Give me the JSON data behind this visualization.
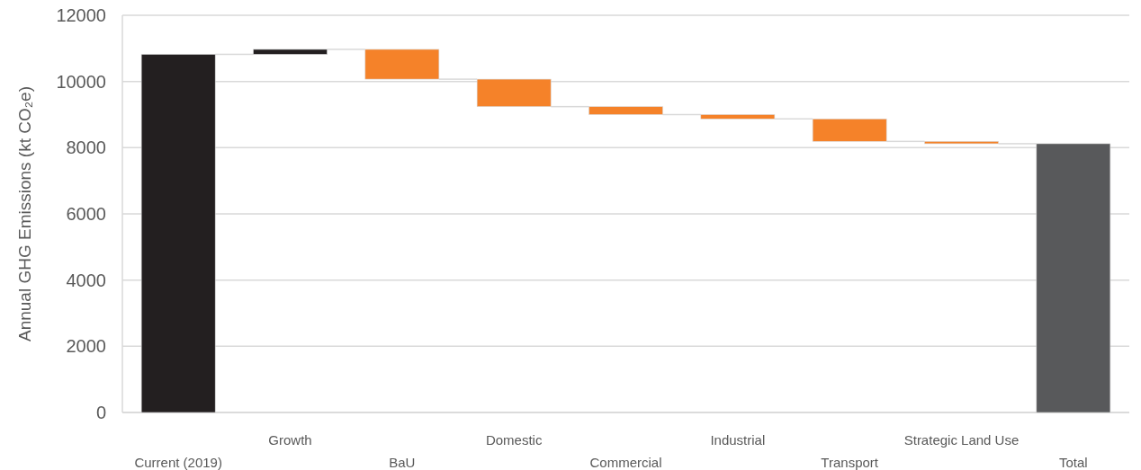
{
  "chart_data": {
    "type": "bar",
    "ylabel": "Annual GHG Emissions (kt CO₂e)",
    "categories": [
      "Current (2019)",
      "Growth",
      "BaU",
      "Domestic",
      "Commercial",
      "Industrial",
      "Transport",
      "Strategic Land Use",
      "Total"
    ],
    "base": [
      0,
      10820,
      10970,
      10070,
      9240,
      9000,
      8870,
      8190,
      0
    ],
    "values": [
      10820,
      150,
      -900,
      -830,
      -240,
      -130,
      -680,
      -70,
      8120
    ],
    "colors": [
      "#231f20",
      "#231f20",
      "#f58229",
      "#f58229",
      "#f58229",
      "#f58229",
      "#f58229",
      "#f58229",
      "#58595b"
    ],
    "ylim": [
      0,
      12000
    ],
    "yticks": [
      0,
      2000,
      4000,
      6000,
      8000,
      10000,
      12000
    ],
    "grid": "y"
  }
}
